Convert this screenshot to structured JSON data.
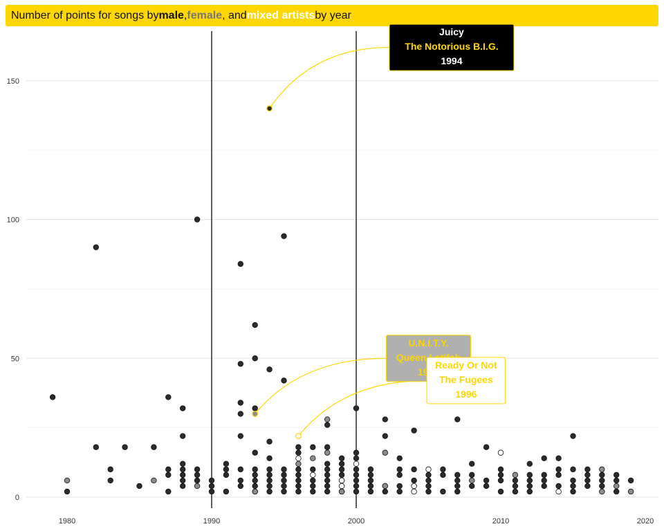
{
  "title": {
    "prefix": "Number of points for songs by ",
    "male": "male",
    "sep1": ", ",
    "female": "female",
    "sep2": ", and ",
    "mixed": "mixed artists",
    "suffix": " by year"
  },
  "colors": {
    "accent": "#FFD700",
    "male": "#2b2b2b",
    "female": "#8c8c8c",
    "mixed": "#ffffff",
    "annotation_male_bg": "#000000",
    "annotation_female_bg": "#b0b0b0",
    "annotation_mixed_bg": "#ffffff"
  },
  "chart_data": {
    "type": "scatter",
    "x_ticks": [
      1980,
      1990,
      2000,
      2010,
      2020
    ],
    "y_ticks": [
      0,
      50,
      100,
      150
    ],
    "xlim": [
      1977,
      2021
    ],
    "ylim": [
      -4,
      168
    ],
    "vlines": [
      1990,
      2000
    ],
    "grid": "horizontal",
    "series": [
      {
        "group": "male",
        "points": [
          [
            1979,
            36
          ],
          [
            1980,
            2
          ],
          [
            1982,
            90
          ],
          [
            1982,
            18
          ],
          [
            1983,
            10
          ],
          [
            1983,
            6
          ],
          [
            1984,
            18
          ],
          [
            1985,
            4
          ],
          [
            1986,
            18
          ],
          [
            1987,
            36
          ],
          [
            1987,
            10
          ],
          [
            1987,
            8
          ],
          [
            1987,
            2
          ],
          [
            1988,
            32
          ],
          [
            1988,
            22
          ],
          [
            1988,
            12
          ],
          [
            1988,
            10
          ],
          [
            1988,
            8
          ],
          [
            1988,
            6
          ],
          [
            1988,
            4
          ],
          [
            1989,
            100
          ],
          [
            1989,
            10
          ],
          [
            1989,
            8
          ],
          [
            1989,
            6
          ],
          [
            1990,
            6
          ],
          [
            1990,
            4
          ],
          [
            1990,
            2
          ],
          [
            1991,
            12
          ],
          [
            1991,
            10
          ],
          [
            1991,
            8
          ],
          [
            1991,
            2
          ],
          [
            1992,
            84
          ],
          [
            1992,
            48
          ],
          [
            1992,
            34
          ],
          [
            1992,
            30
          ],
          [
            1992,
            22
          ],
          [
            1992,
            10
          ],
          [
            1992,
            6
          ],
          [
            1992,
            4
          ],
          [
            1993,
            62
          ],
          [
            1993,
            50
          ],
          [
            1993,
            32
          ],
          [
            1993,
            16
          ],
          [
            1993,
            10
          ],
          [
            1993,
            8
          ],
          [
            1993,
            6
          ],
          [
            1993,
            4
          ],
          [
            1993,
            2
          ],
          [
            1994,
            140
          ],
          [
            1994,
            46
          ],
          [
            1994,
            20
          ],
          [
            1994,
            14
          ],
          [
            1994,
            10
          ],
          [
            1994,
            8
          ],
          [
            1994,
            6
          ],
          [
            1994,
            4
          ],
          [
            1994,
            2
          ],
          [
            1995,
            94
          ],
          [
            1995,
            42
          ],
          [
            1995,
            10
          ],
          [
            1995,
            8
          ],
          [
            1995,
            6
          ],
          [
            1995,
            4
          ],
          [
            1995,
            2
          ],
          [
            1996,
            18
          ],
          [
            1996,
            16
          ],
          [
            1996,
            10
          ],
          [
            1996,
            8
          ],
          [
            1996,
            6
          ],
          [
            1996,
            4
          ],
          [
            1996,
            2
          ],
          [
            1997,
            18
          ],
          [
            1997,
            10
          ],
          [
            1997,
            6
          ],
          [
            1997,
            4
          ],
          [
            1997,
            2
          ],
          [
            1998,
            26
          ],
          [
            1998,
            18
          ],
          [
            1998,
            12
          ],
          [
            1998,
            10
          ],
          [
            1998,
            8
          ],
          [
            1998,
            6
          ],
          [
            1998,
            4
          ],
          [
            1998,
            2
          ],
          [
            1999,
            14
          ],
          [
            1999,
            12
          ],
          [
            1999,
            10
          ],
          [
            1999,
            8
          ],
          [
            1999,
            6
          ],
          [
            1999,
            4
          ],
          [
            1999,
            2
          ],
          [
            2000,
            32
          ],
          [
            2000,
            16
          ],
          [
            2000,
            14
          ],
          [
            2000,
            10
          ],
          [
            2000,
            8
          ],
          [
            2000,
            6
          ],
          [
            2000,
            4
          ],
          [
            2000,
            2
          ],
          [
            2001,
            10
          ],
          [
            2001,
            8
          ],
          [
            2001,
            6
          ],
          [
            2001,
            4
          ],
          [
            2001,
            2
          ],
          [
            2002,
            28
          ],
          [
            2002,
            22
          ],
          [
            2002,
            4
          ],
          [
            2002,
            2
          ],
          [
            2003,
            14
          ],
          [
            2003,
            10
          ],
          [
            2003,
            8
          ],
          [
            2003,
            4
          ],
          [
            2003,
            2
          ],
          [
            2004,
            24
          ],
          [
            2004,
            10
          ],
          [
            2004,
            6
          ],
          [
            2004,
            4
          ],
          [
            2005,
            8
          ],
          [
            2005,
            6
          ],
          [
            2005,
            4
          ],
          [
            2005,
            2
          ],
          [
            2006,
            10
          ],
          [
            2006,
            8
          ],
          [
            2006,
            2
          ],
          [
            2007,
            28
          ],
          [
            2007,
            8
          ],
          [
            2007,
            6
          ],
          [
            2007,
            4
          ],
          [
            2007,
            2
          ],
          [
            2008,
            12
          ],
          [
            2008,
            8
          ],
          [
            2008,
            4
          ],
          [
            2009,
            18
          ],
          [
            2009,
            6
          ],
          [
            2009,
            4
          ],
          [
            2010,
            10
          ],
          [
            2010,
            8
          ],
          [
            2010,
            6
          ],
          [
            2010,
            2
          ],
          [
            2011,
            6
          ],
          [
            2011,
            4
          ],
          [
            2011,
            2
          ],
          [
            2012,
            12
          ],
          [
            2012,
            8
          ],
          [
            2012,
            6
          ],
          [
            2012,
            4
          ],
          [
            2012,
            2
          ],
          [
            2013,
            14
          ],
          [
            2013,
            8
          ],
          [
            2013,
            6
          ],
          [
            2013,
            4
          ],
          [
            2014,
            14
          ],
          [
            2014,
            10
          ],
          [
            2014,
            8
          ],
          [
            2014,
            4
          ],
          [
            2015,
            22
          ],
          [
            2015,
            10
          ],
          [
            2015,
            6
          ],
          [
            2015,
            4
          ],
          [
            2015,
            2
          ],
          [
            2016,
            10
          ],
          [
            2016,
            8
          ],
          [
            2016,
            6
          ],
          [
            2016,
            4
          ],
          [
            2017,
            8
          ],
          [
            2017,
            6
          ],
          [
            2017,
            4
          ],
          [
            2018,
            8
          ],
          [
            2018,
            6
          ],
          [
            2018,
            2
          ],
          [
            2019,
            6
          ]
        ]
      },
      {
        "group": "female",
        "points": [
          [
            1980,
            6
          ],
          [
            1986,
            6
          ],
          [
            1989,
            4
          ],
          [
            1993,
            30
          ],
          [
            1993,
            2
          ],
          [
            1996,
            12
          ],
          [
            1997,
            14
          ],
          [
            1998,
            28
          ],
          [
            1998,
            16
          ],
          [
            1999,
            2
          ],
          [
            2002,
            16
          ],
          [
            2002,
            4
          ],
          [
            2008,
            6
          ],
          [
            2011,
            8
          ],
          [
            2017,
            10
          ],
          [
            2017,
            2
          ],
          [
            2018,
            4
          ],
          [
            2019,
            2
          ]
        ]
      },
      {
        "group": "mixed",
        "points": [
          [
            1996,
            22
          ],
          [
            1996,
            14
          ],
          [
            1997,
            8
          ],
          [
            1999,
            6
          ],
          [
            1999,
            4
          ],
          [
            2000,
            12
          ],
          [
            2004,
            4
          ],
          [
            2004,
            2
          ],
          [
            2005,
            10
          ],
          [
            2010,
            16
          ],
          [
            2014,
            2
          ]
        ]
      }
    ],
    "annotations": [
      {
        "group": "male",
        "lines": [
          "Juicy",
          "The Notorious B.I.G.",
          "1994"
        ],
        "point": [
          1994,
          140
        ],
        "label_position": [
          2006.6,
          162
        ]
      },
      {
        "group": "female",
        "lines": [
          "U.N.I.T.Y.",
          "Queen Latifah",
          "1993"
        ],
        "point": [
          1993,
          30
        ],
        "label_position": [
          2005.0,
          50
        ]
      },
      {
        "group": "mixed",
        "lines": [
          "Ready Or Not",
          "The Fugees",
          "1996"
        ],
        "point": [
          1996,
          22
        ],
        "label_position": [
          2007.6,
          42
        ]
      }
    ]
  }
}
